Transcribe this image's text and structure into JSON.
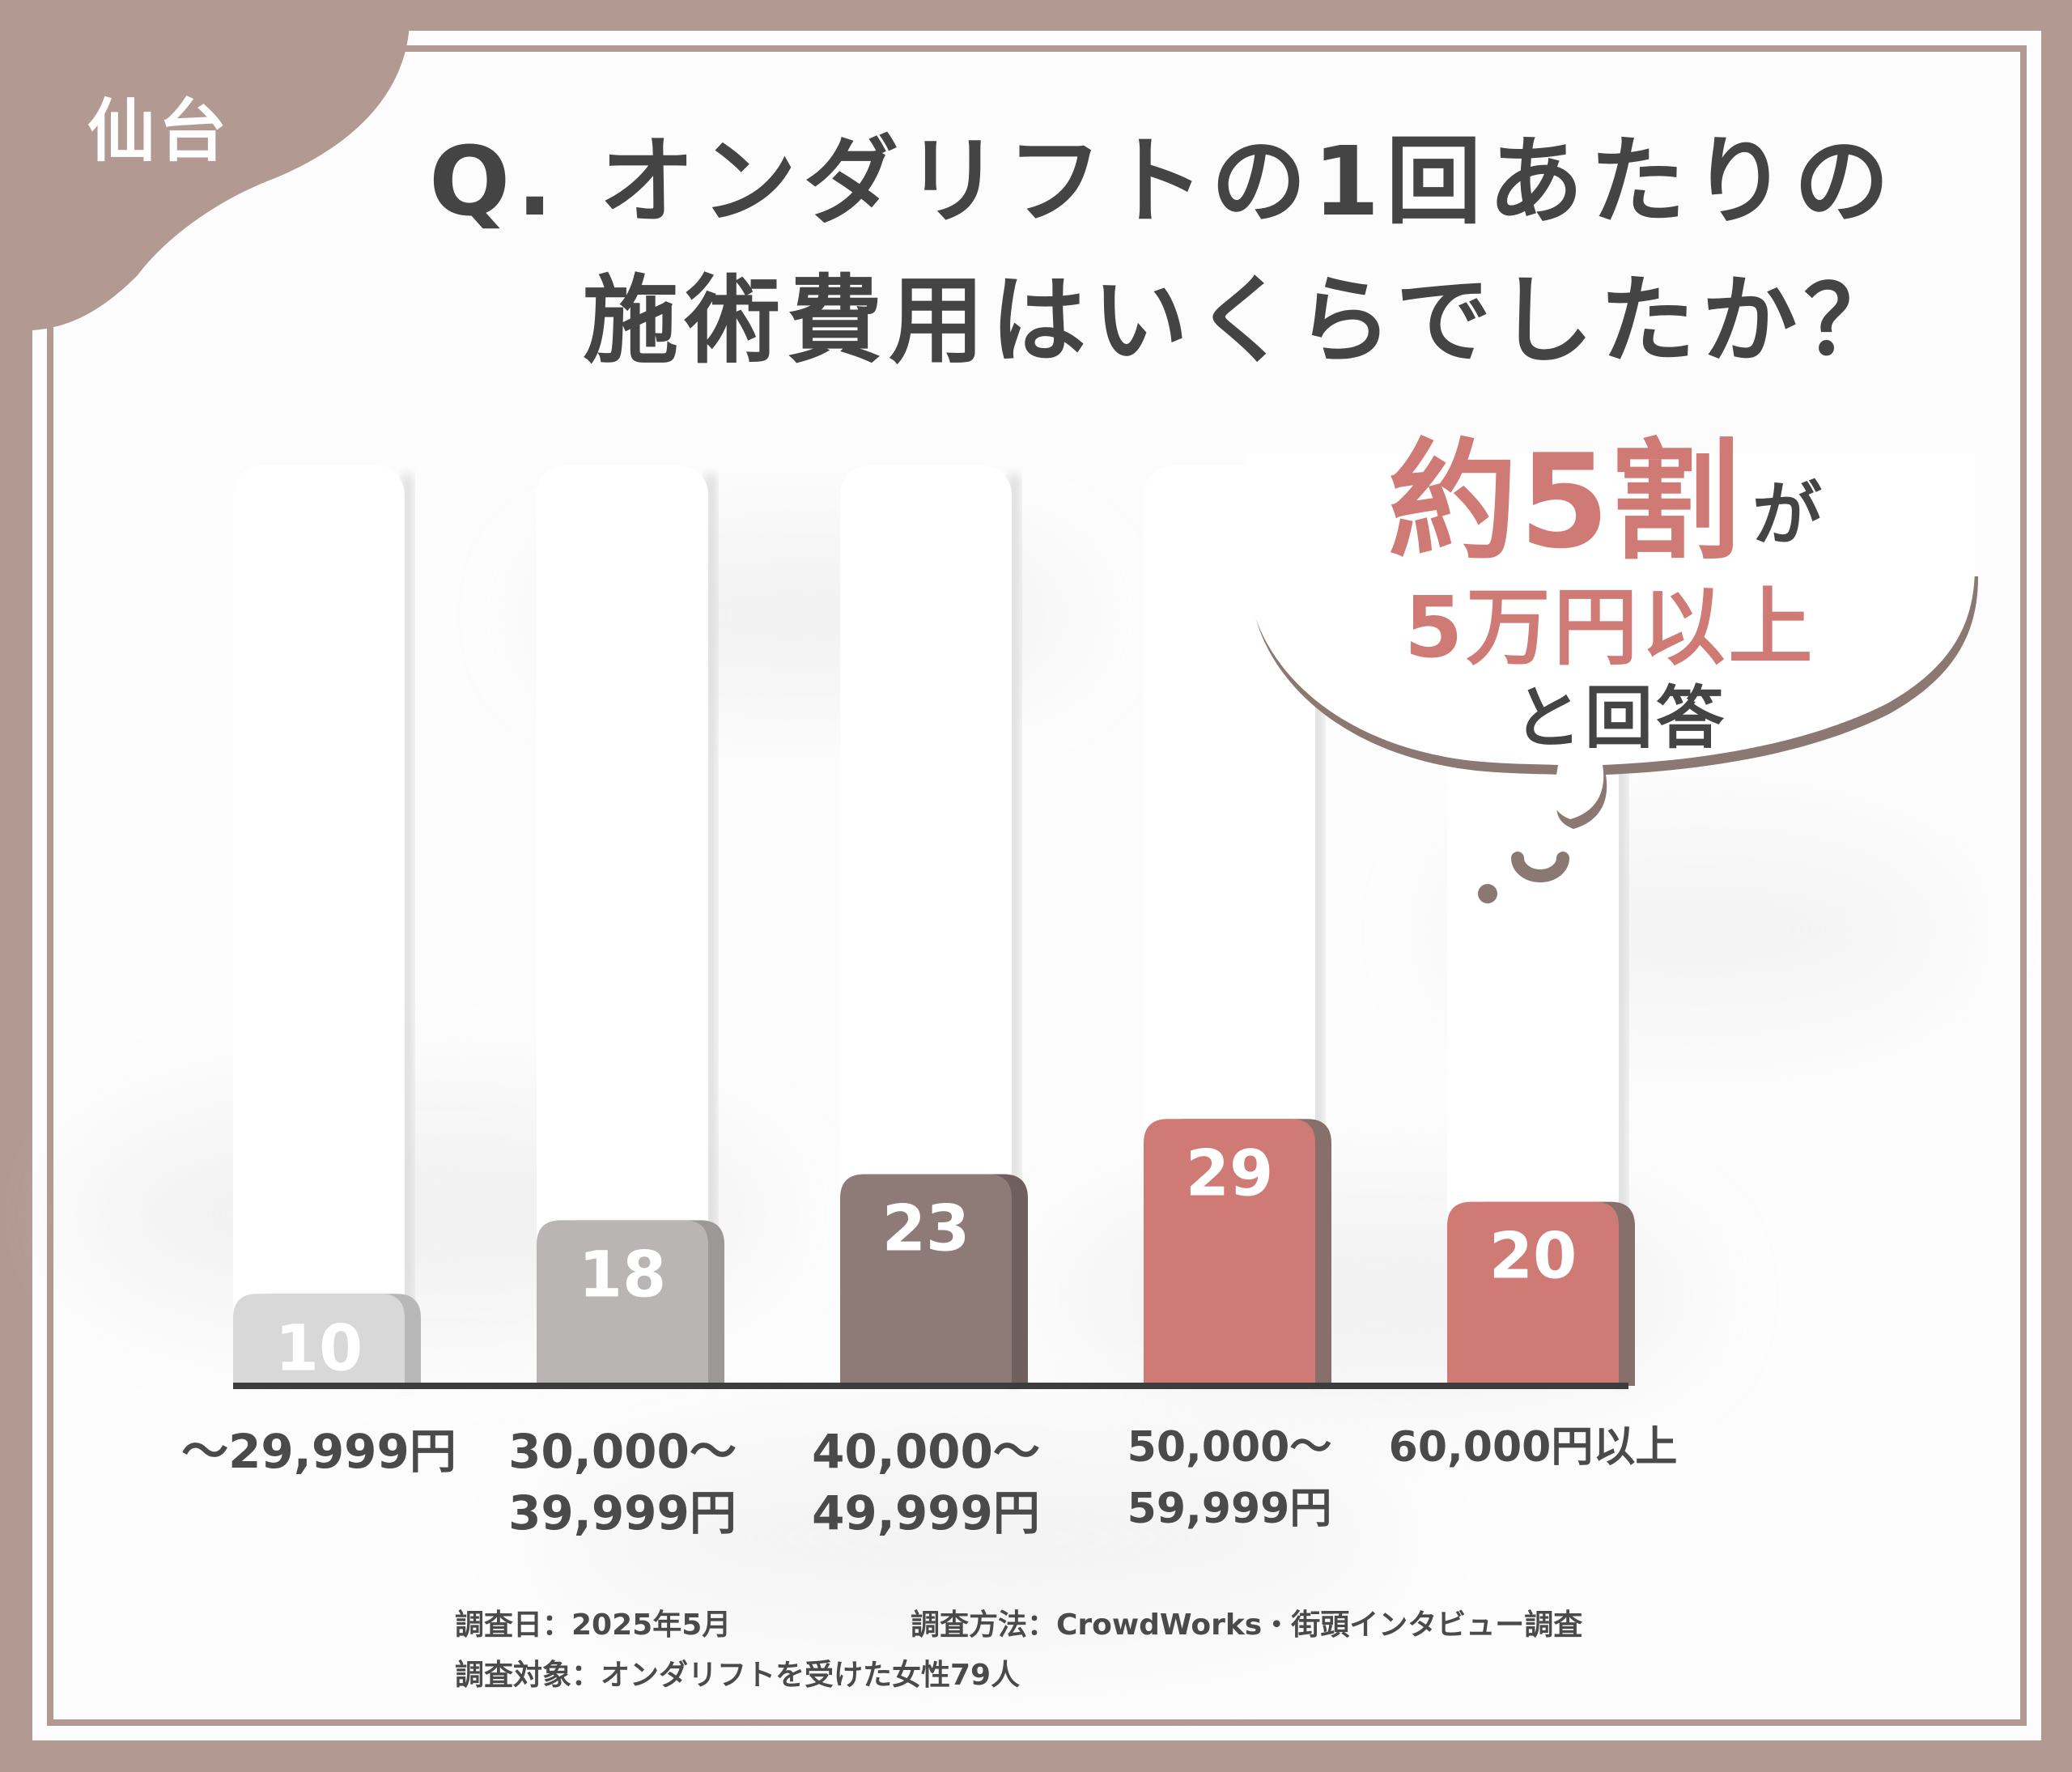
{
  "badge": {
    "city": "仙台"
  },
  "title": {
    "line1": "Q. オンダリフトの1回あたりの",
    "line2": "施術費用はいくらでしたか？"
  },
  "callout": {
    "ratio": "約5割",
    "particle": "が",
    "range": "5万円以上",
    "suffix": "と回答"
  },
  "chart_data": {
    "type": "bar",
    "categories": [
      "～29,999円",
      "30,000～\n39,999円",
      "40,000～\n49,999円",
      "50,000～\n59,999円",
      "60,000円以上"
    ],
    "values": [
      10,
      18,
      23,
      29,
      20
    ],
    "title": "Q. オンダリフトの1回あたりの施術費用はいくらでしたか？",
    "xlabel": "",
    "ylabel": "",
    "ylim": [
      0,
      100
    ],
    "grid": false,
    "legend": "none",
    "colors": [
      "#d8d8d8",
      "#b9b5b4",
      "#8e7b78",
      "#d07a75",
      "#d07a75"
    ],
    "shadow_colors": [
      "#b8b8b8",
      "#9c9897",
      "#6f605d",
      "#87706b",
      "#87706b"
    ]
  },
  "footer": {
    "date": "調査日：2025年5月",
    "method": "調査方法：CrowdWorks・街頭インタビュー調査",
    "target": "調査対象：オンダリフトを受けた女性79人"
  },
  "colors": {
    "frame": "#b29a92",
    "accent": "#d07a75",
    "text": "#444444"
  }
}
